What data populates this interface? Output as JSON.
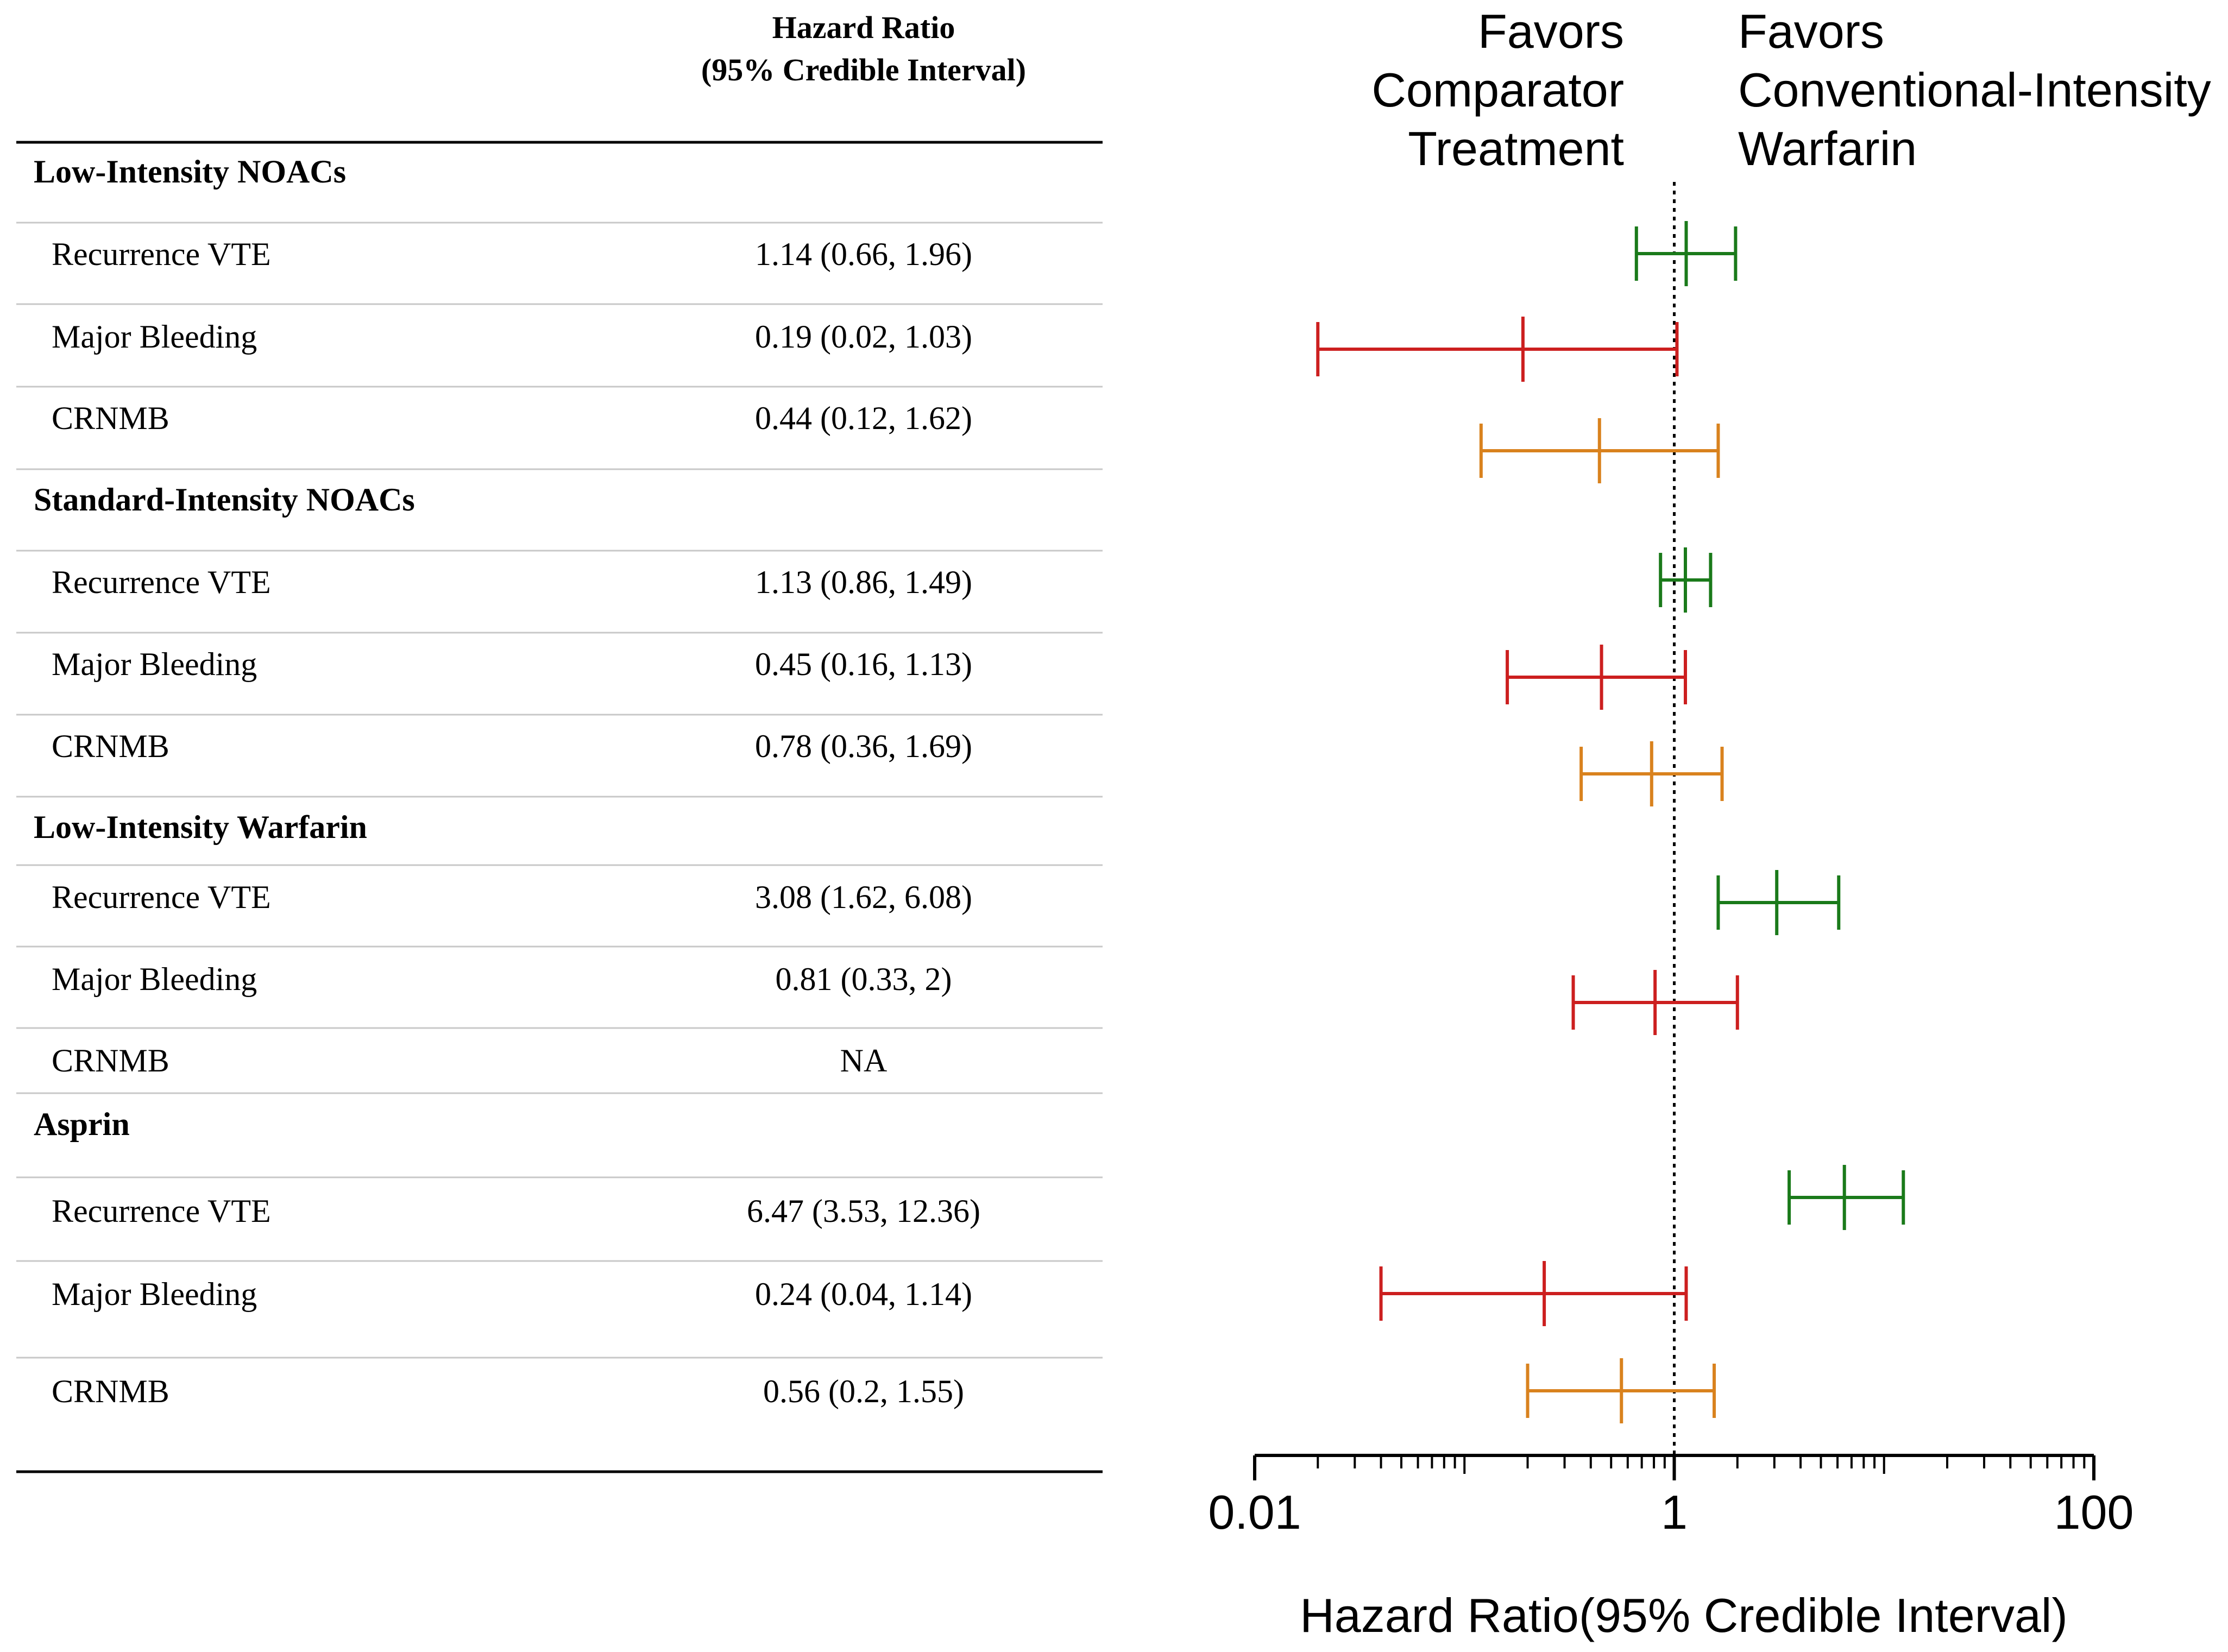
{
  "table": {
    "header_line1": "Hazard Ratio",
    "header_line2": "(95% Credible Interval)"
  },
  "annotations": {
    "left": [
      "Favors",
      "Comparator",
      "Treatment"
    ],
    "right": [
      "Favors",
      "Conventional-Intensity",
      "Warfarin"
    ]
  },
  "colors": {
    "recurrence_vte": "#1a7a1a",
    "major_bleeding": "#cc1f1f",
    "crnmb": "#d9821e",
    "axis": "#000000"
  },
  "chart_data": {
    "type": "forest",
    "title": "",
    "xlabel": "Hazard Ratio(95% Credible Interval)",
    "xscale": "log",
    "xlim": [
      0.01,
      100
    ],
    "xticks": [
      0.01,
      1,
      100
    ],
    "xtick_labels": [
      "0.01",
      "1",
      "100"
    ],
    "reference_line": 1,
    "groups": [
      {
        "name": "Low-Intensity NOACs",
        "rows": [
          {
            "outcome": "Recurrence VTE",
            "label": "1.14 (0.66, 1.96)",
            "hr": 1.14,
            "low": 0.66,
            "high": 1.96,
            "color_key": "recurrence_vte"
          },
          {
            "outcome": "Major Bleeding",
            "label": "0.19 (0.02, 1.03)",
            "hr": 0.19,
            "low": 0.02,
            "high": 1.03,
            "color_key": "major_bleeding"
          },
          {
            "outcome": "CRNMB",
            "label": "0.44 (0.12, 1.62)",
            "hr": 0.44,
            "low": 0.12,
            "high": 1.62,
            "color_key": "crnmb"
          }
        ]
      },
      {
        "name": "Standard-Intensity NOACs",
        "rows": [
          {
            "outcome": "Recurrence VTE",
            "label": "1.13 (0.86, 1.49)",
            "hr": 1.13,
            "low": 0.86,
            "high": 1.49,
            "color_key": "recurrence_vte"
          },
          {
            "outcome": "Major Bleeding",
            "label": "0.45 (0.16, 1.13)",
            "hr": 0.45,
            "low": 0.16,
            "high": 1.13,
            "color_key": "major_bleeding"
          },
          {
            "outcome": "CRNMB",
            "label": "0.78 (0.36, 1.69)",
            "hr": 0.78,
            "low": 0.36,
            "high": 1.69,
            "color_key": "crnmb"
          }
        ]
      },
      {
        "name": "Low-Intensity Warfarin",
        "rows": [
          {
            "outcome": "Recurrence VTE",
            "label": "3.08 (1.62, 6.08)",
            "hr": 3.08,
            "low": 1.62,
            "high": 6.08,
            "color_key": "recurrence_vte"
          },
          {
            "outcome": "Major Bleeding",
            "label": "0.81 (0.33, 2)",
            "hr": 0.81,
            "low": 0.33,
            "high": 2,
            "color_key": "major_bleeding"
          },
          {
            "outcome": "CRNMB",
            "label": "NA",
            "hr": null,
            "low": null,
            "high": null,
            "color_key": "crnmb"
          }
        ]
      },
      {
        "name": "Asprin",
        "rows": [
          {
            "outcome": "Recurrence VTE",
            "label": "6.47 (3.53, 12.36)",
            "hr": 6.47,
            "low": 3.53,
            "high": 12.36,
            "color_key": "recurrence_vte"
          },
          {
            "outcome": "Major Bleeding",
            "label": "0.24 (0.04, 1.14)",
            "hr": 0.24,
            "low": 0.04,
            "high": 1.14,
            "color_key": "major_bleeding"
          },
          {
            "outcome": "CRNMB",
            "label": "0.56 (0.2, 1.55)",
            "hr": 0.56,
            "low": 0.2,
            "high": 1.55,
            "color_key": "crnmb"
          }
        ]
      }
    ]
  }
}
